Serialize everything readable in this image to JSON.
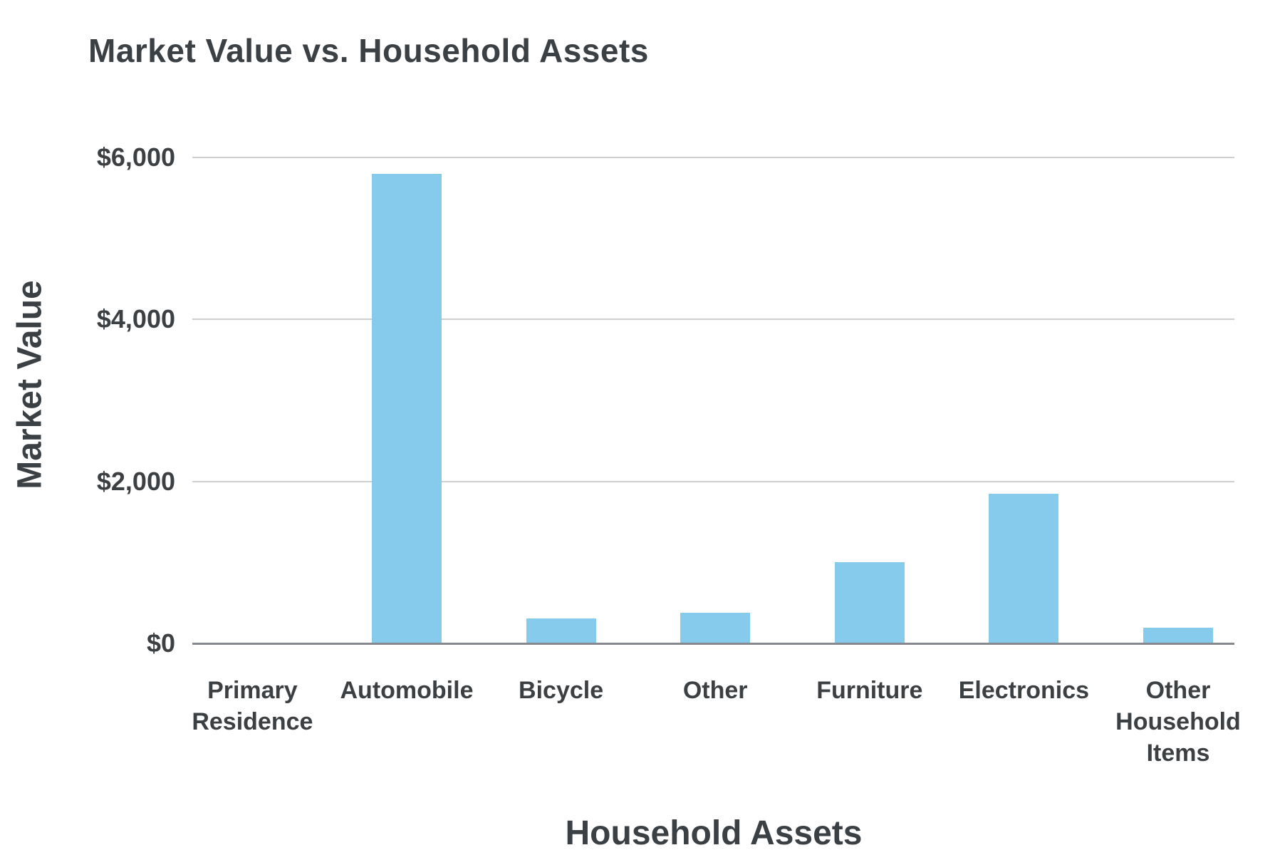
{
  "chart_data": {
    "type": "bar",
    "title": "Market Value vs. Household Assets",
    "xlabel": "Household Assets",
    "ylabel": "Market Value",
    "categories": [
      "Primary Residence",
      "Automobile",
      "Bicycle",
      "Other",
      "Furniture",
      "Electronics",
      "Other Household Items"
    ],
    "category_label_lines": [
      [
        "Primary",
        "Residence"
      ],
      [
        "Automobile"
      ],
      [
        "Bicycle"
      ],
      [
        "Other"
      ],
      [
        "Furniture"
      ],
      [
        "Electronics"
      ],
      [
        "Other",
        "Household",
        "Items"
      ]
    ],
    "values": [
      0,
      5800,
      310,
      375,
      1000,
      1850,
      190
    ],
    "y_axis": {
      "min": 0,
      "max": 6000,
      "ticks": [
        {
          "value": 0,
          "label": "$0"
        },
        {
          "value": 2000,
          "label": "$2,000"
        },
        {
          "value": 4000,
          "label": "$4,000"
        },
        {
          "value": 6000,
          "label": "$6,000"
        }
      ]
    },
    "grid": "horizontal",
    "legend": "none",
    "colors": {
      "bar": "#87CBEC",
      "gridline": "#CDCFD1",
      "baseline": "#85898D",
      "title_text": "#3B4045",
      "axis_text": "#3C4043",
      "background": "#FFFFFF"
    }
  }
}
